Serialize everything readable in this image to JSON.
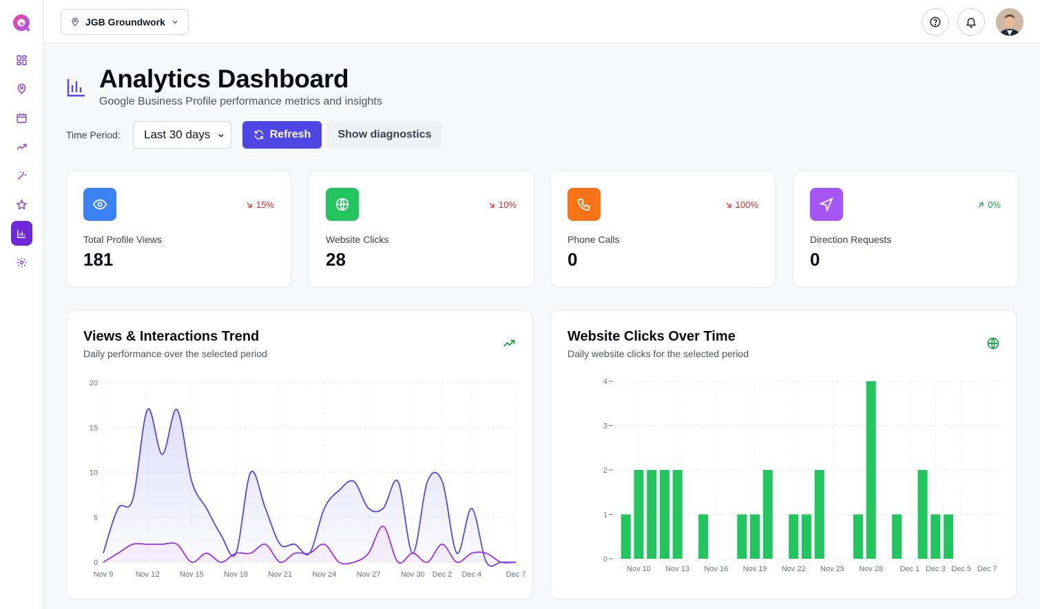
{
  "topbar": {
    "business_name": "JGB Groundwork",
    "help_icon": "help-circle-icon",
    "notifications_icon": "bell-icon"
  },
  "sidebar": {
    "items": [
      {
        "icon": "dashboard-grid-icon",
        "active": false
      },
      {
        "icon": "map-pin-icon",
        "active": false
      },
      {
        "icon": "calendar-icon",
        "active": false
      },
      {
        "icon": "trending-up-icon",
        "active": false
      },
      {
        "icon": "magic-wand-icon",
        "active": false
      },
      {
        "icon": "star-icon",
        "active": false
      },
      {
        "icon": "bar-chart-icon",
        "active": true
      },
      {
        "icon": "gear-icon",
        "active": false
      }
    ]
  },
  "header": {
    "title": "Analytics Dashboard",
    "subtitle": "Google Business Profile performance metrics and insights"
  },
  "controls": {
    "period_label": "Time Period:",
    "period_value": "Last 30 days",
    "refresh_label": "Refresh",
    "diagnostics_label": "Show diagnostics"
  },
  "stats": [
    {
      "label": "Total Profile Views",
      "value": "181",
      "change": "15%",
      "direction": "down",
      "icon": "eye-icon",
      "color": "#3b82f6"
    },
    {
      "label": "Website Clicks",
      "value": "28",
      "change": "10%",
      "direction": "down",
      "icon": "globe-icon",
      "color": "#22c55e"
    },
    {
      "label": "Phone Calls",
      "value": "0",
      "change": "100%",
      "direction": "down",
      "icon": "phone-icon",
      "color": "#f97316"
    },
    {
      "label": "Direction Requests",
      "value": "0",
      "change": "0%",
      "direction": "up",
      "icon": "navigation-icon",
      "color": "#a855f7"
    }
  ],
  "colors": {
    "accent": "#4f46e5",
    "down": "#dc2626",
    "up": "#16a34a",
    "views_line": "#4f46e5",
    "interactions_line": "#9333ea",
    "clicks_bar": "#22c55e"
  },
  "chart_data": [
    {
      "type": "area",
      "title": "Views & Interactions Trend",
      "subtitle": "Daily performance over the selected period",
      "x_ticks": [
        "Nov 9",
        "Nov 12",
        "Nov 15",
        "Nov 18",
        "Nov 21",
        "Nov 24",
        "Nov 27",
        "Nov 30",
        "Dec 2",
        "Dec 4",
        "Dec 7"
      ],
      "y_ticks": [
        0,
        5,
        10,
        15,
        20
      ],
      "ylim": [
        0,
        20
      ],
      "grid": true,
      "x": [
        "Nov 9",
        "Nov 10",
        "Nov 11",
        "Nov 12",
        "Nov 13",
        "Nov 14",
        "Nov 15",
        "Nov 16",
        "Nov 17",
        "Nov 18",
        "Nov 19",
        "Nov 20",
        "Nov 21",
        "Nov 22",
        "Nov 23",
        "Nov 24",
        "Nov 25",
        "Nov 26",
        "Nov 27",
        "Nov 28",
        "Nov 29",
        "Nov 30",
        "Dec 1",
        "Dec 2",
        "Dec 3",
        "Dec 4",
        "Dec 5",
        "Dec 6",
        "Dec 7"
      ],
      "series": [
        {
          "values": [
            1,
            6,
            7,
            17,
            12,
            17,
            9,
            6,
            3,
            1,
            10,
            6,
            2,
            2,
            1,
            6,
            8,
            9,
            6,
            6,
            9,
            1,
            9,
            9,
            1,
            6,
            0,
            0,
            0
          ]
        },
        {
          "values": [
            0,
            1,
            2,
            2,
            2,
            2,
            0,
            1,
            0,
            1,
            1,
            2,
            0,
            1,
            1,
            2,
            0,
            0,
            1,
            4,
            0,
            1,
            0,
            2,
            0,
            1,
            1,
            0,
            0
          ]
        }
      ]
    },
    {
      "type": "bar",
      "title": "Website Clicks Over Time",
      "subtitle": "Daily website clicks for the selected period",
      "x_ticks": [
        "Nov 10",
        "Nov 13",
        "Nov 16",
        "Nov 19",
        "Nov 22",
        "Nov 25",
        "Nov 28",
        "Dec 1",
        "Dec 3",
        "Dec 5",
        "Dec 7"
      ],
      "y_ticks": [
        0,
        1,
        2,
        3,
        4
      ],
      "ylim": [
        0,
        4
      ],
      "grid": true,
      "categories": [
        "Nov 9",
        "Nov 10",
        "Nov 11",
        "Nov 12",
        "Nov 13",
        "Nov 14",
        "Nov 15",
        "Nov 16",
        "Nov 17",
        "Nov 18",
        "Nov 19",
        "Nov 20",
        "Nov 21",
        "Nov 22",
        "Nov 23",
        "Nov 24",
        "Nov 25",
        "Nov 26",
        "Nov 27",
        "Nov 28",
        "Nov 29",
        "Nov 30",
        "Dec 1",
        "Dec 2",
        "Dec 3",
        "Dec 4",
        "Dec 5",
        "Dec 6",
        "Dec 7"
      ],
      "values": [
        1,
        2,
        2,
        2,
        2,
        0,
        1,
        0,
        0,
        1,
        1,
        2,
        0,
        1,
        1,
        2,
        0,
        0,
        1,
        4,
        0,
        1,
        0,
        2,
        1,
        1,
        0,
        0,
        0
      ]
    }
  ]
}
